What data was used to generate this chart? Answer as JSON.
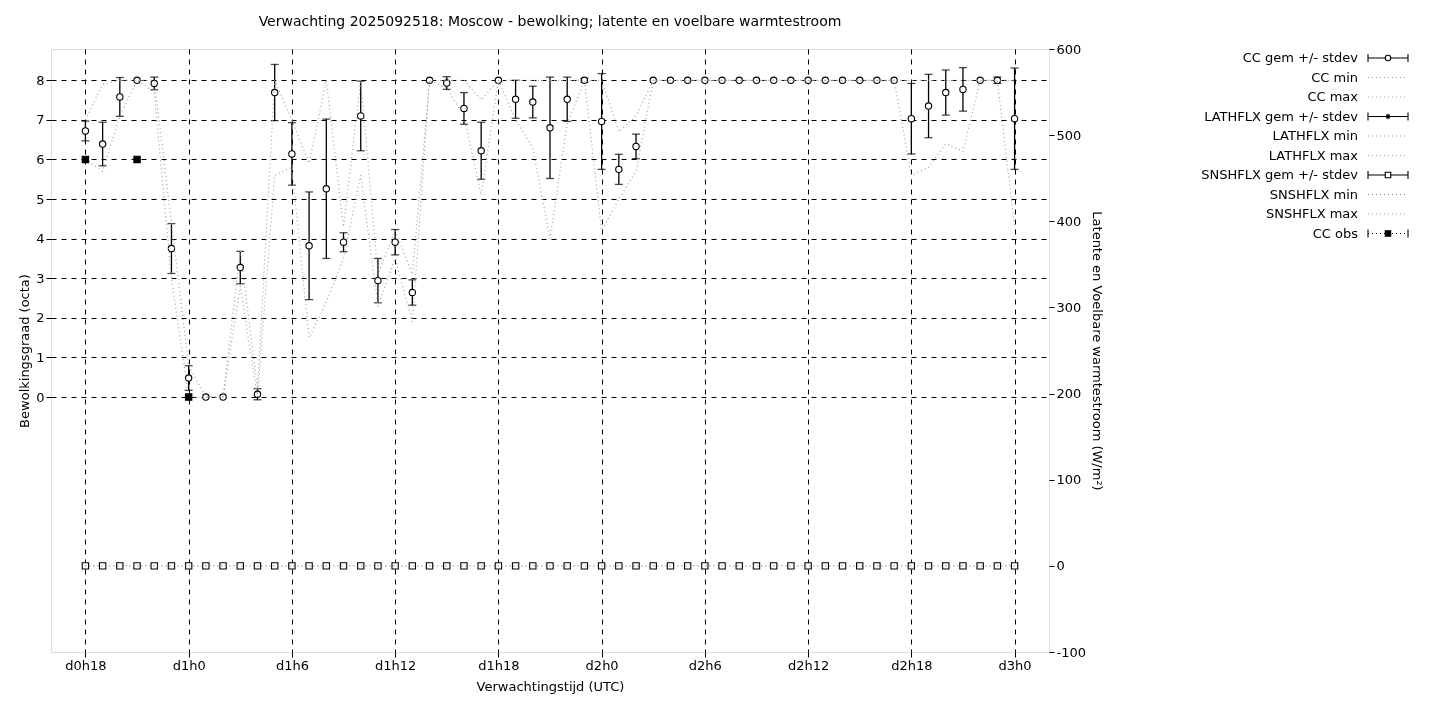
{
  "chart_data": {
    "type": "scatter",
    "title": "Verwachting 2025092518: Moscow - bewolking; latente en voelbare warmtestroom",
    "xlabel": "Verwachtingstijd (UTC)",
    "ylabel": "Bewolkingsgraad (octa)",
    "y2label": "Latente en Voelbare warmtestroom (W/m²)",
    "categories": [
      "d0h18",
      null,
      null,
      null,
      null,
      null,
      "d1h0",
      null,
      null,
      null,
      null,
      null,
      "d1h6",
      null,
      null,
      null,
      null,
      null,
      "d1h12",
      null,
      null,
      null,
      null,
      null,
      "d1h18",
      null,
      null,
      null,
      null,
      null,
      "d2h0",
      null,
      null,
      null,
      null,
      null,
      "d2h6",
      null,
      null,
      null,
      null,
      null,
      "d2h12",
      null,
      null,
      null,
      null,
      null,
      "d2h18",
      null,
      null,
      null,
      null,
      null,
      "d3h0"
    ],
    "ylim": [
      -6.44,
      8.79
    ],
    "yticks": [
      0,
      1,
      2,
      3,
      4,
      5,
      6,
      7,
      8
    ],
    "y2lim": [
      -100,
      600
    ],
    "y2ticks": [
      -100,
      0,
      100,
      200,
      300,
      400,
      500,
      600
    ],
    "grid": true,
    "legend": "top right",
    "series": [
      {
        "name": "CC gem +/- stdev",
        "marker": "circle",
        "color": "#000000",
        "values": [
          6.72,
          6.39,
          7.58,
          8,
          7.92,
          3.75,
          0.48,
          0,
          0,
          3.27,
          0.07,
          7.69,
          6.14,
          3.82,
          5.26,
          3.91,
          7.1,
          2.94,
          3.91,
          2.64,
          8,
          7.93,
          7.29,
          6.22,
          8,
          7.52,
          7.45,
          6.8,
          7.52,
          8,
          6.96,
          5.75,
          6.33,
          8,
          8,
          8,
          8,
          8,
          8,
          8,
          8,
          8,
          8,
          8,
          8,
          8,
          8,
          8,
          7.03,
          7.35,
          7.69,
          7.77,
          8,
          8,
          7.03
        ],
        "errors": [
          0.25,
          0.55,
          0.49,
          null,
          0.16,
          0.63,
          0.31,
          null,
          null,
          0.41,
          0.14,
          0.71,
          0.79,
          1.36,
          1.76,
          0.24,
          0.88,
          0.56,
          0.32,
          0.32,
          null,
          0.16,
          0.4,
          0.72,
          null,
          0.48,
          0.4,
          1.28,
          0.56,
          0.05,
          1.21,
          0.38,
          0.31,
          null,
          null,
          null,
          null,
          null,
          null,
          null,
          null,
          null,
          null,
          null,
          null,
          null,
          null,
          null,
          0.89,
          0.8,
          0.57,
          0.55,
          null,
          0.08,
          1.28
        ]
      },
      {
        "name": "CC min",
        "type": "line",
        "line_style": "dotted",
        "color": "#a0a0a0",
        "values": [
          6,
          5.7,
          7.1,
          8,
          7.7,
          3,
          0,
          0,
          0,
          2.8,
          0,
          5.6,
          5.8,
          1.5,
          2.4,
          3.5,
          5.6,
          2.3,
          3.5,
          1.9,
          8,
          7.8,
          7.1,
          5.1,
          8,
          7,
          6.3,
          4,
          6.9,
          8,
          4.2,
          5,
          5.7,
          8,
          8,
          8,
          8,
          8,
          8,
          8,
          8,
          8,
          8,
          8,
          8,
          8,
          8,
          8,
          5.6,
          5.8,
          6.4,
          6.2,
          8,
          8,
          4.3
        ]
      },
      {
        "name": "CC max",
        "type": "line",
        "line_style": "dotted",
        "color": "#a0a0a0",
        "values": [
          7,
          7.9,
          8,
          8,
          8,
          4.4,
          0.8,
          0,
          0,
          3.7,
          0.2,
          8,
          7,
          5.9,
          8,
          4.3,
          8,
          3.1,
          4.2,
          3.1,
          8,
          8,
          8,
          7.5,
          8,
          8,
          8,
          8,
          8,
          8,
          8,
          6.7,
          7.1,
          8,
          8,
          8,
          8,
          8,
          8,
          8,
          8,
          8,
          8,
          8,
          8,
          8,
          8,
          8,
          8,
          8,
          8,
          8,
          8,
          8,
          8
        ]
      },
      {
        "name": "LATHFLX gem +/- stdev",
        "marker": "star",
        "axis": "y2",
        "color": "#000000",
        "values": [
          null,
          null,
          null,
          null,
          null,
          null,
          null,
          null,
          null,
          null,
          null,
          null,
          null,
          null,
          null,
          null,
          null,
          null,
          null,
          null,
          null,
          null,
          null,
          null,
          null,
          null,
          null,
          null,
          null,
          null,
          null,
          null,
          null,
          null,
          null,
          null,
          null,
          null,
          null,
          null,
          null,
          null,
          null,
          null,
          null,
          null,
          null,
          null,
          null,
          null,
          null,
          null,
          null,
          null,
          null
        ],
        "errors": [
          null,
          null,
          null,
          null,
          null,
          null,
          null,
          null,
          null,
          null,
          null,
          null,
          null,
          null,
          null,
          null,
          null,
          null,
          null,
          null,
          null,
          null,
          null,
          null,
          null,
          null,
          null,
          null,
          null,
          null,
          null,
          null,
          null,
          null,
          null,
          null,
          null,
          null,
          null,
          null,
          null,
          null,
          null,
          null,
          null,
          null,
          null,
          null,
          null,
          null,
          null,
          null,
          null,
          null,
          null
        ]
      },
      {
        "name": "LATHFLX min",
        "type": "line",
        "line_style": "dotted",
        "axis": "y2",
        "color": "#a0a0a0",
        "values": [
          null,
          null,
          null,
          null,
          null,
          null,
          null,
          null,
          null,
          null,
          null,
          null,
          null,
          null,
          null,
          null,
          null,
          null,
          null,
          null,
          null,
          null,
          null,
          null,
          null,
          null,
          null,
          null,
          null,
          null,
          null,
          null,
          null,
          null,
          null,
          null,
          null,
          null,
          null,
          null,
          null,
          null,
          null,
          null,
          null,
          null,
          null,
          null,
          null,
          null,
          null,
          null,
          null,
          null,
          null
        ]
      },
      {
        "name": "LATHFLX max",
        "type": "line",
        "line_style": "dotted",
        "axis": "y2",
        "color": "#a0a0a0",
        "values": [
          null,
          null,
          null,
          null,
          null,
          null,
          null,
          null,
          null,
          null,
          null,
          null,
          null,
          null,
          null,
          null,
          null,
          null,
          null,
          null,
          null,
          null,
          null,
          null,
          null,
          null,
          null,
          null,
          null,
          null,
          null,
          null,
          null,
          null,
          null,
          null,
          null,
          null,
          null,
          null,
          null,
          null,
          null,
          null,
          null,
          null,
          null,
          null,
          null,
          null,
          null,
          null,
          null,
          null,
          null
        ]
      },
      {
        "name": "SNSHFLX gem +/- stdev",
        "marker": "square",
        "axis": "y2",
        "color": "#000000",
        "values": [
          0,
          0,
          0,
          0,
          0,
          0,
          0,
          0,
          0,
          0,
          0,
          0,
          0,
          0,
          0,
          0,
          0,
          0,
          0,
          0,
          0,
          0,
          0,
          0,
          0,
          0,
          0,
          0,
          0,
          0,
          0,
          0,
          0,
          0,
          0,
          0,
          0,
          0,
          0,
          0,
          0,
          0,
          0,
          0,
          0,
          0,
          0,
          0,
          0,
          0,
          0,
          0,
          0,
          0,
          0
        ],
        "errors": [
          null,
          null,
          null,
          null,
          null,
          null,
          null,
          null,
          null,
          null,
          null,
          null,
          null,
          null,
          null,
          null,
          null,
          null,
          null,
          null,
          null,
          null,
          null,
          null,
          null,
          null,
          null,
          null,
          null,
          null,
          null,
          null,
          null,
          null,
          null,
          null,
          null,
          null,
          null,
          null,
          null,
          null,
          null,
          null,
          null,
          null,
          null,
          null,
          null,
          null,
          null,
          null,
          null,
          null,
          null
        ]
      },
      {
        "name": "SNSHFLX min",
        "type": "line",
        "line_style": "dotted",
        "axis": "y2",
        "color": "#808080",
        "values": [
          0,
          0,
          0,
          0,
          0,
          0,
          0,
          0,
          0,
          0,
          0,
          0,
          0,
          0,
          0,
          0,
          0,
          0,
          0,
          0,
          0,
          0,
          0,
          0,
          0,
          0,
          0,
          0,
          0,
          0,
          0,
          0,
          0,
          0,
          0,
          0,
          0,
          0,
          0,
          0,
          0,
          0,
          0,
          0,
          0,
          0,
          0,
          0,
          0,
          0,
          0,
          0,
          0,
          0,
          0
        ]
      },
      {
        "name": "SNSHFLX max",
        "type": "line",
        "line_style": "dotted",
        "axis": "y2",
        "color": "#a0a0a0",
        "values": [
          null,
          null,
          null,
          null,
          null,
          null,
          null,
          null,
          null,
          null,
          null,
          null,
          null,
          null,
          null,
          null,
          null,
          null,
          null,
          null,
          null,
          null,
          null,
          null,
          null,
          null,
          null,
          null,
          null,
          null,
          null,
          null,
          null,
          null,
          null,
          null,
          null,
          null,
          null,
          null,
          null,
          null,
          null,
          null,
          null,
          null,
          null,
          null,
          null,
          null,
          null,
          null,
          null,
          null,
          null
        ]
      },
      {
        "name": "CC obs",
        "marker": "square",
        "line_style": "dotted",
        "color": "#000000",
        "values": [
          6,
          null,
          null,
          6,
          null,
          null,
          0,
          null,
          null,
          null,
          null,
          null,
          null,
          null,
          null,
          null,
          null,
          null,
          null,
          null,
          null,
          null,
          null,
          null,
          null,
          null,
          null,
          null,
          null,
          null,
          null,
          null,
          null,
          null,
          null,
          null,
          null,
          null,
          null,
          null,
          null,
          null,
          null,
          null,
          null,
          null,
          null,
          null,
          null,
          null,
          null,
          null,
          null,
          null,
          null
        ]
      }
    ]
  }
}
